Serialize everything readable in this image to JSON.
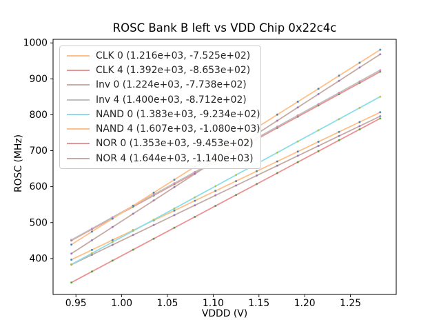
{
  "figure": {
    "title": "ROSC Bank B left vs VDD Chip 0x22c4c",
    "xlabel": "VDDD (V)",
    "ylabel": "ROSC (MHz)"
  },
  "chart_data": {
    "type": "line",
    "title": "ROSC Bank B left vs VDD Chip 0x22c4c",
    "xlabel": "VDDD (V)",
    "ylabel": "ROSC (MHz)",
    "xlim": [
      0.925,
      1.3
    ],
    "ylim": [
      300,
      1010
    ],
    "grid": false,
    "legend_position": "upper left",
    "x_ticks": [
      0.95,
      1.0,
      1.05,
      1.1,
      1.15,
      1.2,
      1.25
    ],
    "x_tick_labels": [
      "0.95",
      "1.00",
      "1.05",
      "1.10",
      "1.15",
      "1.20",
      "1.25"
    ],
    "y_ticks": [
      400,
      500,
      600,
      700,
      800,
      900,
      1000
    ],
    "y_tick_labels": [
      "400",
      "500",
      "600",
      "700",
      "800",
      "900",
      "1000"
    ],
    "x": [
      0.945,
      0.9675,
      0.99,
      1.0125,
      1.035,
      1.0575,
      1.08,
      1.1025,
      1.125,
      1.1475,
      1.17,
      1.1925,
      1.215,
      1.2375,
      1.26,
      1.2825
    ],
    "series": [
      {
        "name": "CLK 0",
        "legend_label": "CLK 0 (1.216e+03, -7.525e+02)",
        "slope": 1216,
        "intercept": -752.5,
        "line_color": "#ffbf86",
        "point_color": "#1f77b4"
      },
      {
        "name": "CLK 4",
        "legend_label": "CLK 4 (1.392e+03, -8.653e+02)",
        "slope": 1392,
        "intercept": -865.3,
        "line_color": "#eb9394",
        "point_color": "#2ca02c"
      },
      {
        "name": "Inv 0",
        "legend_label": "Inv 0 (1.224e+03, -7.738e+02)",
        "slope": 1224,
        "intercept": -773.8,
        "line_color": "#c5aaa5",
        "point_color": "#9467bd"
      },
      {
        "name": "Inv 4",
        "legend_label": "Inv 4 (1.400e+03, -8.712e+02)",
        "slope": 1400,
        "intercept": -871.2,
        "line_color": "#bfbfbf",
        "point_color": "#e377c2"
      },
      {
        "name": "NAND 0",
        "legend_label": "NAND 0 (1.383e+03, -9.234e+02)",
        "slope": 1383,
        "intercept": -923.4,
        "line_color": "#8bdee7",
        "point_color": "#bcbd22"
      },
      {
        "name": "NAND 4",
        "legend_label": "NAND 4 (1.607e+03, -1.080e+03)",
        "slope": 1607,
        "intercept": -1080.0,
        "line_color": "#ffbf86",
        "point_color": "#1f77b4"
      },
      {
        "name": "NOR 0",
        "legend_label": "NOR 0 (1.353e+03, -9.453e+02)",
        "slope": 1353,
        "intercept": -945.3,
        "line_color": "#eb9394",
        "point_color": "#2ca02c"
      },
      {
        "name": "NOR 4",
        "legend_label": "NOR 4 (1.644e+03, -1.140e+03)",
        "slope": 1644,
        "intercept": -1140.0,
        "line_color": "#c5aaa5",
        "point_color": "#9467bd"
      }
    ],
    "axis_color": "#000000"
  }
}
